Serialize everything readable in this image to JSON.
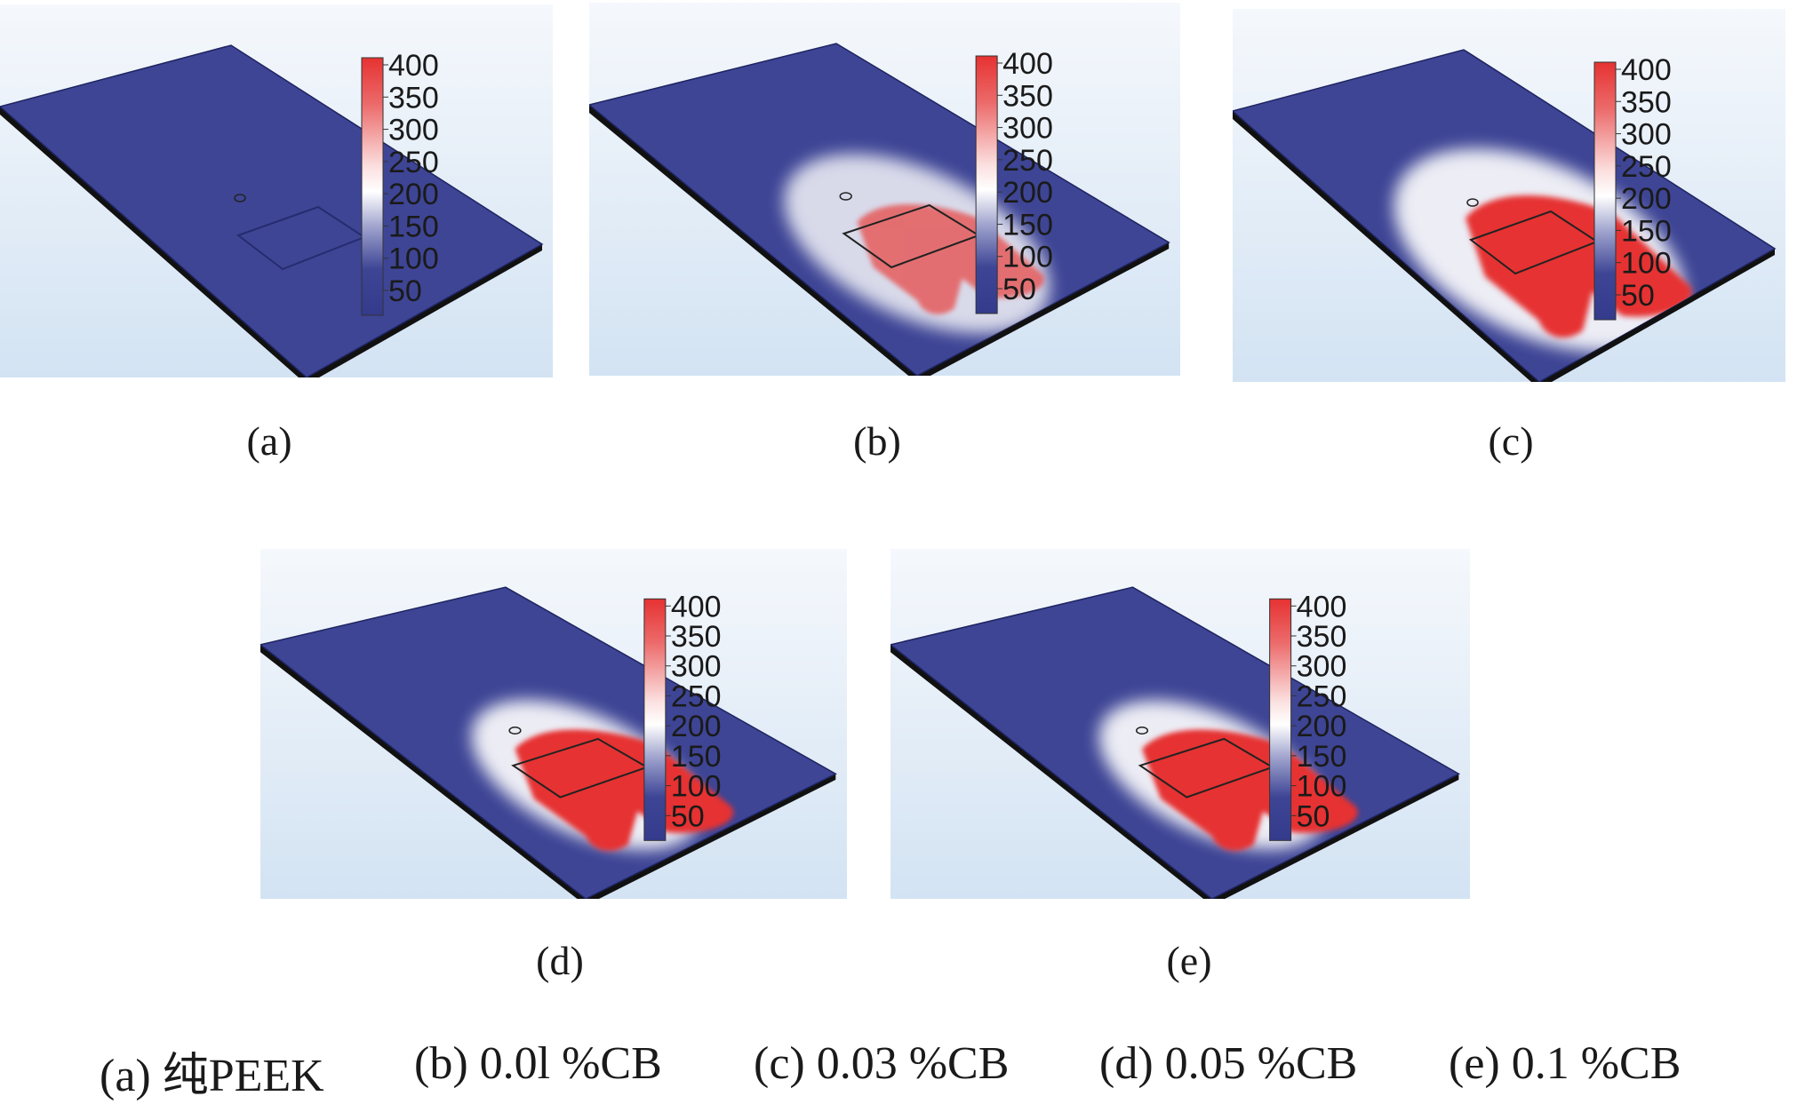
{
  "colorbar": {
    "ticks": [
      "400",
      "350",
      "300",
      "250",
      "200",
      "150",
      "100",
      "50"
    ],
    "colors": {
      "low": "#3e4595",
      "mid": "#ffffff",
      "high": "#e63232"
    }
  },
  "panels": [
    {
      "label": "(a)",
      "hot_level": 0
    },
    {
      "label": "(b)",
      "hot_level": 1
    },
    {
      "label": "(c)",
      "hot_level": 2
    },
    {
      "label": "(d)",
      "hot_level": 3
    },
    {
      "label": "(e)",
      "hot_level": 3
    }
  ],
  "captions": [
    "(a) 纯PEEK",
    "(b) 0.0l %CB",
    "(c) 0.03 %CB",
    "(d) 0.05 %CB",
    "(e) 0.1 %CB"
  ]
}
